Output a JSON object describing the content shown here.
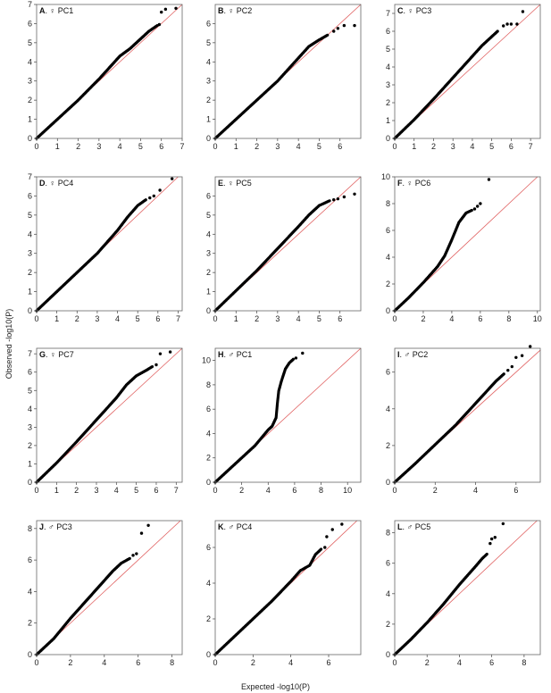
{
  "figure": {
    "ylabel": "Observed -log10(P)",
    "xlabel": "Expected -log10(P)"
  },
  "chart_data": [
    {
      "type": "scatter",
      "letter": "A",
      "sex": "♀",
      "pc": "PC1",
      "xlim": [
        0,
        7
      ],
      "ylim": [
        0,
        7
      ],
      "xticks": [
        0,
        1,
        2,
        3,
        4,
        5,
        6,
        7
      ],
      "yticks": [
        0,
        1,
        2,
        3,
        4,
        5,
        6,
        7
      ],
      "qq_points": [
        [
          0,
          0
        ],
        [
          1,
          1
        ],
        [
          2,
          2.0
        ],
        [
          3,
          3.1
        ],
        [
          4,
          4.3
        ],
        [
          4.5,
          4.7
        ],
        [
          5,
          5.2
        ],
        [
          5.4,
          5.6
        ],
        [
          5.8,
          5.9
        ]
      ],
      "top_points": [
        [
          5.9,
          5.95
        ],
        [
          6.0,
          6.6
        ],
        [
          6.2,
          6.75
        ],
        [
          6.7,
          6.8
        ]
      ]
    },
    {
      "type": "scatter",
      "letter": "B",
      "sex": "♀",
      "pc": "PC2",
      "xlim": [
        0,
        7
      ],
      "ylim": [
        0,
        7
      ],
      "xticks": [
        0,
        1,
        2,
        3,
        4,
        5,
        6
      ],
      "yticks": [
        0,
        1,
        2,
        3,
        4,
        5,
        6
      ],
      "qq_points": [
        [
          0,
          0
        ],
        [
          1,
          1
        ],
        [
          2,
          2
        ],
        [
          3,
          3
        ],
        [
          3.5,
          3.6
        ],
        [
          4,
          4.2
        ],
        [
          4.5,
          4.8
        ],
        [
          5,
          5.15
        ],
        [
          5.4,
          5.4
        ]
      ],
      "top_points": [
        [
          5.7,
          5.6
        ],
        [
          5.9,
          5.75
        ],
        [
          6.2,
          5.9
        ],
        [
          6.7,
          5.9
        ]
      ]
    },
    {
      "type": "scatter",
      "letter": "C",
      "sex": "♀",
      "pc": "PC3",
      "xlim": [
        0,
        7.5
      ],
      "ylim": [
        0,
        7.5
      ],
      "xticks": [
        0,
        1,
        2,
        3,
        4,
        5,
        6,
        7
      ],
      "yticks": [
        0,
        1,
        2,
        3,
        4,
        5,
        6,
        7
      ],
      "qq_points": [
        [
          0,
          0
        ],
        [
          1,
          1.05
        ],
        [
          2,
          2.2
        ],
        [
          3,
          3.4
        ],
        [
          4,
          4.6
        ],
        [
          4.5,
          5.2
        ],
        [
          5,
          5.7
        ],
        [
          5.3,
          6.0
        ]
      ],
      "top_points": [
        [
          5.6,
          6.3
        ],
        [
          5.8,
          6.4
        ],
        [
          6.0,
          6.4
        ],
        [
          6.3,
          6.4
        ],
        [
          6.6,
          7.1
        ]
      ]
    },
    {
      "type": "scatter",
      "letter": "D",
      "sex": "♀",
      "pc": "PC4",
      "xlim": [
        0,
        7.2
      ],
      "ylim": [
        0,
        7
      ],
      "xticks": [
        0,
        1,
        2,
        3,
        4,
        5,
        6,
        7
      ],
      "yticks": [
        0,
        1,
        2,
        3,
        4,
        5,
        6,
        7
      ],
      "qq_points": [
        [
          0,
          0
        ],
        [
          1,
          1
        ],
        [
          2,
          2
        ],
        [
          3,
          3
        ],
        [
          4,
          4.2
        ],
        [
          4.5,
          4.9
        ],
        [
          5,
          5.5
        ],
        [
          5.4,
          5.8
        ]
      ],
      "top_points": [
        [
          5.6,
          5.9
        ],
        [
          5.8,
          6.0
        ],
        [
          6.1,
          6.3
        ],
        [
          6.7,
          6.9
        ]
      ]
    },
    {
      "type": "scatter",
      "letter": "E",
      "sex": "♀",
      "pc": "PC5",
      "xlim": [
        0,
        7
      ],
      "ylim": [
        0,
        7
      ],
      "xticks": [
        0,
        1,
        2,
        3,
        4,
        5,
        6
      ],
      "yticks": [
        0,
        1,
        2,
        3,
        4,
        5,
        6
      ],
      "qq_points": [
        [
          0,
          0
        ],
        [
          1,
          1.05
        ],
        [
          2,
          2.1
        ],
        [
          3,
          3.25
        ],
        [
          4,
          4.4
        ],
        [
          4.5,
          5.0
        ],
        [
          5,
          5.5
        ],
        [
          5.5,
          5.75
        ]
      ],
      "top_points": [
        [
          5.7,
          5.8
        ],
        [
          5.9,
          5.85
        ],
        [
          6.2,
          5.95
        ],
        [
          6.7,
          6.1
        ]
      ]
    },
    {
      "type": "scatter",
      "letter": "F",
      "sex": "♀",
      "pc": "PC6",
      "xlim": [
        0,
        10.2
      ],
      "ylim": [
        0,
        10
      ],
      "xticks": [
        0,
        2,
        4,
        6,
        8,
        10
      ],
      "yticks": [
        0,
        2,
        4,
        6,
        8,
        10
      ],
      "qq_points": [
        [
          0,
          0
        ],
        [
          1,
          1
        ],
        [
          2,
          2.1
        ],
        [
          3,
          3.3
        ],
        [
          3.5,
          4.1
        ],
        [
          4,
          5.3
        ],
        [
          4.5,
          6.6
        ],
        [
          5,
          7.3
        ],
        [
          5.4,
          7.5
        ]
      ],
      "top_points": [
        [
          5.6,
          7.6
        ],
        [
          5.8,
          7.8
        ],
        [
          6.0,
          8.0
        ],
        [
          6.6,
          9.8
        ]
      ]
    },
    {
      "type": "scatter",
      "letter": "G",
      "sex": "♀",
      "pc": "PC7",
      "xlim": [
        0,
        7.3
      ],
      "ylim": [
        0,
        7.3
      ],
      "xticks": [
        0,
        1,
        2,
        3,
        4,
        5,
        6,
        7
      ],
      "yticks": [
        0,
        1,
        2,
        3,
        4,
        5,
        6,
        7
      ],
      "qq_points": [
        [
          0,
          0
        ],
        [
          1,
          1.05
        ],
        [
          2,
          2.2
        ],
        [
          3,
          3.4
        ],
        [
          4,
          4.6
        ],
        [
          4.5,
          5.3
        ],
        [
          5,
          5.8
        ],
        [
          5.5,
          6.1
        ],
        [
          5.8,
          6.3
        ]
      ],
      "top_points": [
        [
          6.0,
          6.4
        ],
        [
          6.2,
          7.0
        ],
        [
          6.7,
          7.1
        ]
      ]
    },
    {
      "type": "scatter",
      "letter": "H",
      "sex": "♂",
      "pc": "PC1",
      "xlim": [
        0,
        11
      ],
      "ylim": [
        0,
        11
      ],
      "xticks": [
        0,
        2,
        4,
        6,
        8,
        10
      ],
      "yticks": [
        0,
        2,
        4,
        6,
        8,
        10
      ],
      "qq_points": [
        [
          0,
          0
        ],
        [
          1,
          1
        ],
        [
          2,
          2
        ],
        [
          3,
          3
        ],
        [
          4,
          4.3
        ],
        [
          4.3,
          4.6
        ],
        [
          4.6,
          5.3
        ],
        [
          4.7,
          6.5
        ],
        [
          4.8,
          7.5
        ],
        [
          5.0,
          8.3
        ],
        [
          5.3,
          9.3
        ],
        [
          5.6,
          9.8
        ],
        [
          5.9,
          10.1
        ]
      ],
      "top_points": [
        [
          6.1,
          10.2
        ],
        [
          6.6,
          10.6
        ]
      ]
    },
    {
      "type": "scatter",
      "letter": "I",
      "sex": "♂",
      "pc": "PC2",
      "xlim": [
        0,
        7.2
      ],
      "ylim": [
        0,
        7.3
      ],
      "xticks": [
        0,
        2,
        4,
        6
      ],
      "yticks": [
        0,
        2,
        4,
        6
      ],
      "qq_points": [
        [
          0,
          0
        ],
        [
          1,
          1
        ],
        [
          2,
          2.05
        ],
        [
          3,
          3.1
        ],
        [
          4,
          4.3
        ],
        [
          4.5,
          4.9
        ],
        [
          5,
          5.5
        ],
        [
          5.4,
          5.9
        ]
      ],
      "top_points": [
        [
          5.6,
          6.1
        ],
        [
          5.8,
          6.3
        ],
        [
          6.0,
          6.8
        ],
        [
          6.3,
          6.9
        ],
        [
          6.7,
          7.4
        ]
      ]
    },
    {
      "type": "scatter",
      "letter": "J",
      "sex": "♂",
      "pc": "PC3",
      "xlim": [
        0,
        8.6
      ],
      "ylim": [
        0,
        8.5
      ],
      "xticks": [
        0,
        2,
        4,
        6,
        8
      ],
      "yticks": [
        0,
        2,
        4,
        6,
        8
      ],
      "qq_points": [
        [
          0,
          0
        ],
        [
          1,
          1
        ],
        [
          2,
          2.3
        ],
        [
          3,
          3.5
        ],
        [
          4,
          4.7
        ],
        [
          4.5,
          5.3
        ],
        [
          5,
          5.8
        ],
        [
          5.5,
          6.1
        ]
      ],
      "top_points": [
        [
          5.7,
          6.3
        ],
        [
          5.9,
          6.4
        ],
        [
          6.2,
          7.7
        ],
        [
          6.6,
          8.2
        ]
      ]
    },
    {
      "type": "scatter",
      "letter": "K",
      "sex": "♂",
      "pc": "PC4",
      "xlim": [
        0,
        7.7
      ],
      "ylim": [
        0,
        7.5
      ],
      "xticks": [
        0,
        2,
        4,
        6
      ],
      "yticks": [
        0,
        2,
        4,
        6
      ],
      "qq_points": [
        [
          0,
          0
        ],
        [
          1,
          1
        ],
        [
          2,
          2
        ],
        [
          3,
          3
        ],
        [
          4,
          4.1
        ],
        [
          4.5,
          4.7
        ],
        [
          5,
          5.0
        ],
        [
          5.3,
          5.6
        ],
        [
          5.6,
          5.9
        ]
      ],
      "top_points": [
        [
          5.8,
          6.0
        ],
        [
          5.9,
          6.6
        ],
        [
          6.2,
          7.0
        ],
        [
          6.7,
          7.3
        ]
      ]
    },
    {
      "type": "scatter",
      "letter": "L",
      "sex": "♂",
      "pc": "PC5",
      "xlim": [
        0,
        9
      ],
      "ylim": [
        0,
        8.8
      ],
      "xticks": [
        0,
        2,
        4,
        6,
        8
      ],
      "yticks": [
        0,
        2,
        4,
        6,
        8
      ],
      "qq_points": [
        [
          0,
          0
        ],
        [
          1,
          1
        ],
        [
          2,
          2.1
        ],
        [
          3,
          3.3
        ],
        [
          4,
          4.6
        ],
        [
          4.5,
          5.2
        ],
        [
          5,
          5.8
        ],
        [
          5.4,
          6.3
        ],
        [
          5.7,
          6.6
        ]
      ],
      "top_points": [
        [
          5.9,
          7.3
        ],
        [
          6.0,
          7.6
        ],
        [
          6.2,
          7.7
        ],
        [
          6.7,
          8.6
        ]
      ]
    }
  ]
}
